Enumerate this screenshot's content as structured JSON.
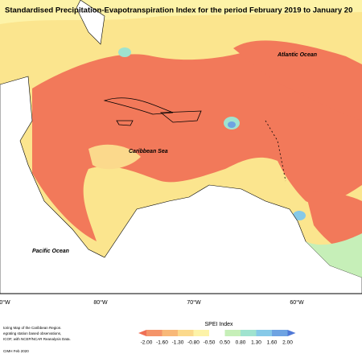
{
  "title": "Standardised Precipitation-Evapotranspiration Index for the period February 2019 to January 20",
  "map_labels": {
    "atlantic": "Atlantic Ocean",
    "caribbean": "Caribbean Sea",
    "pacific": "Pacific Ocean"
  },
  "longitudes": [
    "0°W",
    "80°W",
    "70°W",
    "60°W"
  ],
  "legend": {
    "title": "SPEI Index",
    "ticks": [
      "-2.00",
      "-1.60",
      "-1.30",
      "-0.80",
      "-0.50",
      "0.50",
      "0.80",
      "1.30",
      "1.60",
      "2.00"
    ],
    "colors": [
      "#ef6f55",
      "#f4946a",
      "#f8b878",
      "#fbd98c",
      "#fdf3a8",
      "#ffffff",
      "#c6efb8",
      "#9fe3cf",
      "#86c9e8",
      "#6ea3e2",
      "#4f78d6"
    ]
  },
  "footnotes": [
    "toring Map of the Caribbean Region.",
    "egrating station based observations,",
    "ICOF, with NCEP/NCAR Reanalysis Data.",
    "CIMH Feb 2020"
  ]
}
